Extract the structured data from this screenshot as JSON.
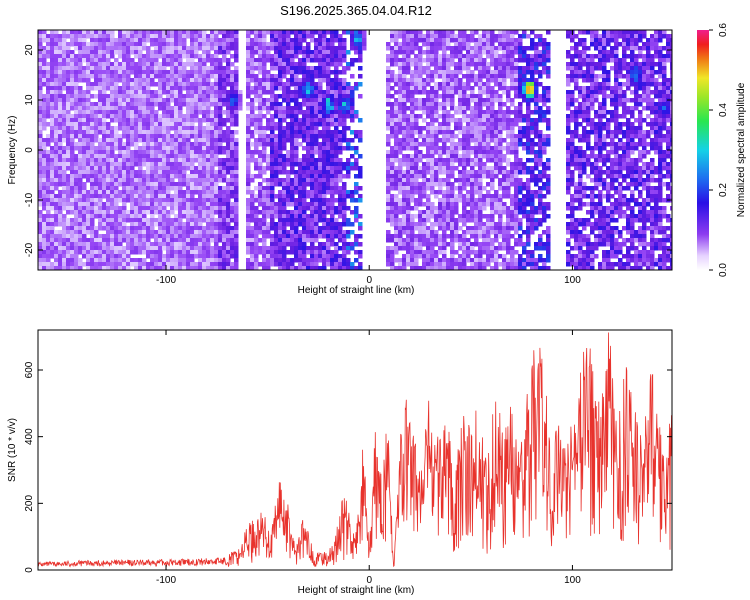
{
  "figure": {
    "title": "S196.2025.365.04.04.R12"
  },
  "colors": {
    "snr_line": "#e8322c",
    "axis": "#000000",
    "background": "#ffffff"
  },
  "chart_data": [
    {
      "type": "heatmap",
      "title": "S196.2025.365.04.04.R12",
      "xlabel": "Height of straight line (km)",
      "ylabel": "Frequency (Hz)",
      "xlim": [
        -163,
        149
      ],
      "ylim": [
        -24,
        24
      ],
      "xticks": [
        -100,
        0,
        100
      ],
      "yticks": [
        -20,
        -10,
        0,
        10,
        20
      ],
      "colorbar": {
        "label": "Normalized spectral amplitude",
        "range": [
          0.0,
          0.6
        ],
        "ticks": [
          "0.0",
          "0.2",
          "0.4",
          "0.6"
        ],
        "colormap": "rainbow (violet-blue-cyan-green-yellow-red-magenta)"
      },
      "grid": false,
      "bands": [
        {
          "x_start": -163,
          "x_end": -75,
          "level": 0.05,
          "density": 0.95
        },
        {
          "x_start": -75,
          "x_end": -64,
          "level": 0.08,
          "density": 0.9
        },
        {
          "x_start": -64,
          "x_end": -60,
          "level": 0.0,
          "density": 0.05
        },
        {
          "x_start": -60,
          "x_end": -48,
          "level": 0.06,
          "density": 0.8
        },
        {
          "x_start": -48,
          "x_end": -12,
          "level": 0.1,
          "density": 0.9
        },
        {
          "x_start": -12,
          "x_end": -4,
          "level": 0.15,
          "density": 0.5
        },
        {
          "x_start": -4,
          "x_end": 8,
          "level": 0.0,
          "density": 0.1
        },
        {
          "x_start": 8,
          "x_end": 74,
          "level": 0.06,
          "density": 0.85
        },
        {
          "x_start": 74,
          "x_end": 88,
          "level": 0.12,
          "density": 0.7
        },
        {
          "x_start": 88,
          "x_end": 96,
          "level": 0.0,
          "density": 0.1
        },
        {
          "x_start": 96,
          "x_end": 149,
          "level": 0.1,
          "density": 0.8
        }
      ],
      "hotspots": [
        {
          "x": -67,
          "y": 10,
          "value": 0.2
        },
        {
          "x": -30,
          "y": 12,
          "value": 0.25
        },
        {
          "x": -20,
          "y": 9,
          "value": 0.3
        },
        {
          "x": -12,
          "y": 9,
          "value": 0.28
        },
        {
          "x": -6,
          "y": 22,
          "value": 0.25
        },
        {
          "x": 79,
          "y": 12,
          "value": 0.5
        },
        {
          "x": 131,
          "y": 15,
          "value": 0.25
        },
        {
          "x": 145,
          "y": 8,
          "value": 0.2
        }
      ]
    },
    {
      "type": "line",
      "xlabel": "Height of straight line (km)",
      "ylabel": "SNR (10 * v/v)",
      "xlim": [
        -163,
        149
      ],
      "ylim": [
        0,
        720
      ],
      "xticks": [
        -100,
        0,
        100
      ],
      "yticks": [
        0,
        200,
        400,
        600
      ],
      "grid": false,
      "series": [
        {
          "color": "#e8322c",
          "x": [
            -163,
            -150,
            -140,
            -130,
            -120,
            -110,
            -100,
            -90,
            -80,
            -70,
            -65,
            -62,
            -60,
            -56,
            -52,
            -48,
            -44,
            -40,
            -36,
            -33,
            -30,
            -26,
            -22,
            -18,
            -15,
            -13,
            -10,
            -7,
            -5,
            -3,
            0,
            3,
            6,
            9,
            12,
            15,
            18,
            22,
            26,
            30,
            34,
            38,
            42,
            46,
            50,
            54,
            58,
            62,
            66,
            70,
            74,
            78,
            82,
            86,
            90,
            94,
            98,
            102,
            106,
            110,
            114,
            118,
            122,
            126,
            130,
            134,
            138,
            142,
            146,
            149
          ],
          "values": [
            20,
            22,
            25,
            24,
            26,
            25,
            27,
            28,
            30,
            33,
            35,
            60,
            85,
            95,
            110,
            70,
            185,
            120,
            40,
            95,
            70,
            30,
            35,
            45,
            90,
            150,
            110,
            60,
            120,
            240,
            35,
            260,
            180,
            290,
            10,
            240,
            320,
            260,
            190,
            350,
            240,
            300,
            190,
            290,
            260,
            310,
            190,
            380,
            240,
            330,
            200,
            380,
            420,
            400,
            200,
            350,
            260,
            330,
            420,
            400,
            320,
            460,
            260,
            380,
            300,
            250,
            400,
            300,
            220,
            330
          ]
        }
      ]
    }
  ]
}
